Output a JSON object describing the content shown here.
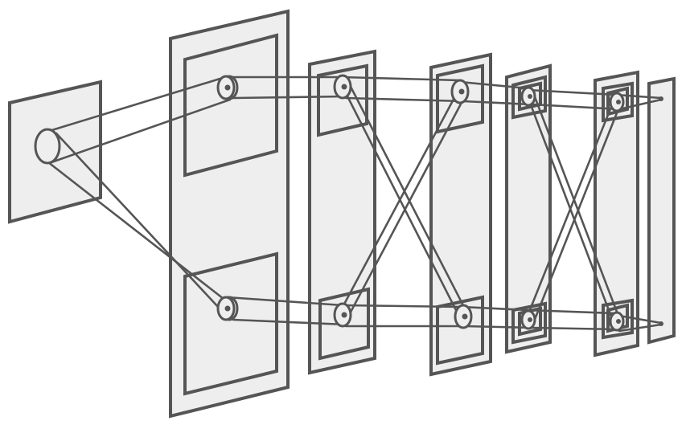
{
  "diagram": {
    "description_text": "",
    "colors": {
      "panel_fill": "#eeeeee",
      "stroke": "#555555",
      "background": "#ffffff"
    },
    "structure": {
      "layers": 7,
      "units_per_layer": 2
    }
  }
}
